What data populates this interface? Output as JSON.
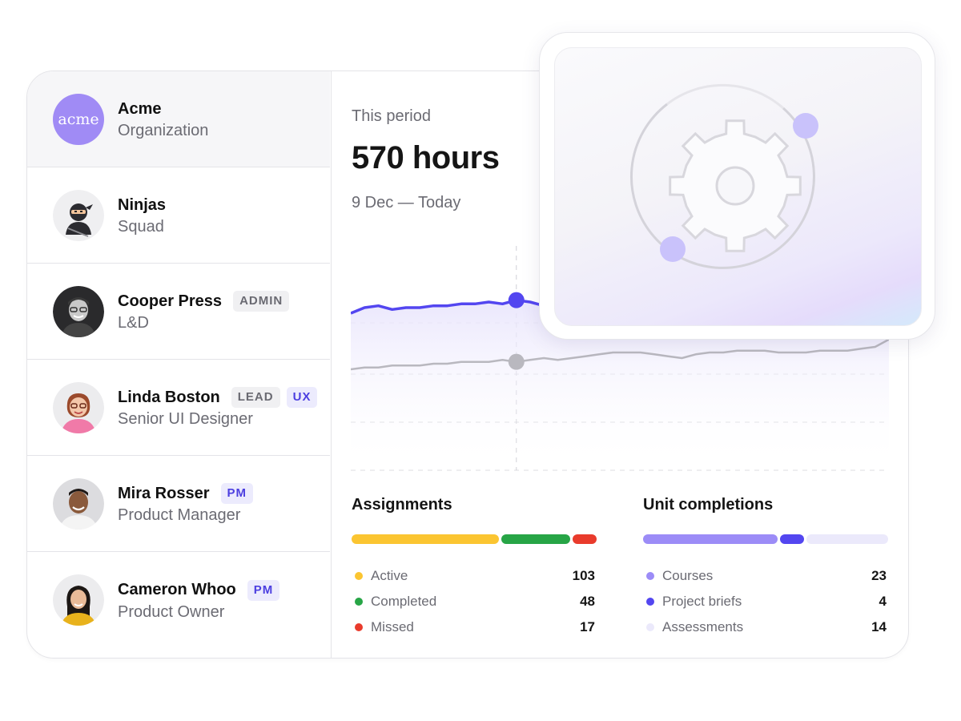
{
  "sidebar": {
    "items": [
      {
        "name": "Acme",
        "subtitle": "Organization",
        "avatar_text": "acme",
        "badges": []
      },
      {
        "name": "Ninjas",
        "subtitle": "Squad",
        "badges": []
      },
      {
        "name": "Cooper Press",
        "subtitle": "L&D",
        "badges": [
          "ADMIN"
        ]
      },
      {
        "name": "Linda Boston",
        "subtitle": "Senior UI Designer",
        "badges": [
          "LEAD",
          "UX"
        ]
      },
      {
        "name": "Mira Rosser",
        "subtitle": "Product Manager",
        "badges": [
          "PM"
        ]
      },
      {
        "name": "Cameron Whoo",
        "subtitle": "Product Owner",
        "badges": [
          "PM"
        ]
      }
    ]
  },
  "period": {
    "label": "This period",
    "value": "570 hours",
    "range": "9 Dec — Today"
  },
  "chart_data": {
    "type": "line",
    "x": [
      1,
      2,
      3,
      4,
      5,
      6,
      7,
      8,
      9,
      10,
      11,
      12,
      13,
      14,
      15,
      16,
      17,
      18,
      19,
      20,
      21,
      22,
      23,
      24,
      25,
      26,
      27,
      28,
      29,
      30,
      31,
      32,
      33,
      34,
      35,
      36,
      37,
      38,
      39,
      40
    ],
    "series": [
      {
        "color": "#5346f0",
        "values": [
          84,
          87,
          88,
          86,
          87,
          87,
          88,
          88,
          89,
          89,
          90,
          89,
          91,
          90,
          88,
          89,
          88,
          87,
          87,
          86,
          85,
          86,
          85,
          84,
          84,
          83,
          83,
          82,
          82,
          81,
          81,
          80,
          80,
          80,
          79,
          79,
          79,
          78,
          78,
          78
        ]
      },
      {
        "color": "#b9b8bf",
        "values": [
          54,
          55,
          55,
          56,
          56,
          56,
          57,
          57,
          58,
          58,
          58,
          59,
          58,
          59,
          60,
          59,
          60,
          61,
          62,
          63,
          63,
          63,
          62,
          61,
          60,
          62,
          63,
          63,
          64,
          64,
          64,
          63,
          63,
          63,
          64,
          64,
          64,
          65,
          66,
          70
        ]
      }
    ],
    "highlight_index": 12,
    "ylim": [
      0,
      120
    ]
  },
  "assignments": {
    "title": "Assignments",
    "items": [
      {
        "label": "Active",
        "value": 103,
        "color": "#fbc531"
      },
      {
        "label": "Completed",
        "value": 48,
        "color": "#27a546"
      },
      {
        "label": "Missed",
        "value": 17,
        "color": "#e93b2c"
      }
    ]
  },
  "units": {
    "title": "Unit completions",
    "items": [
      {
        "label": "Courses",
        "value": 23,
        "color": "#9c8cf7"
      },
      {
        "label": "Project briefs",
        "value": 4,
        "color": "#5346f0"
      },
      {
        "label": "Assessments",
        "value": 14,
        "color": "#ebe9fb"
      }
    ]
  },
  "overlay": {
    "icon": "gear-icon"
  }
}
